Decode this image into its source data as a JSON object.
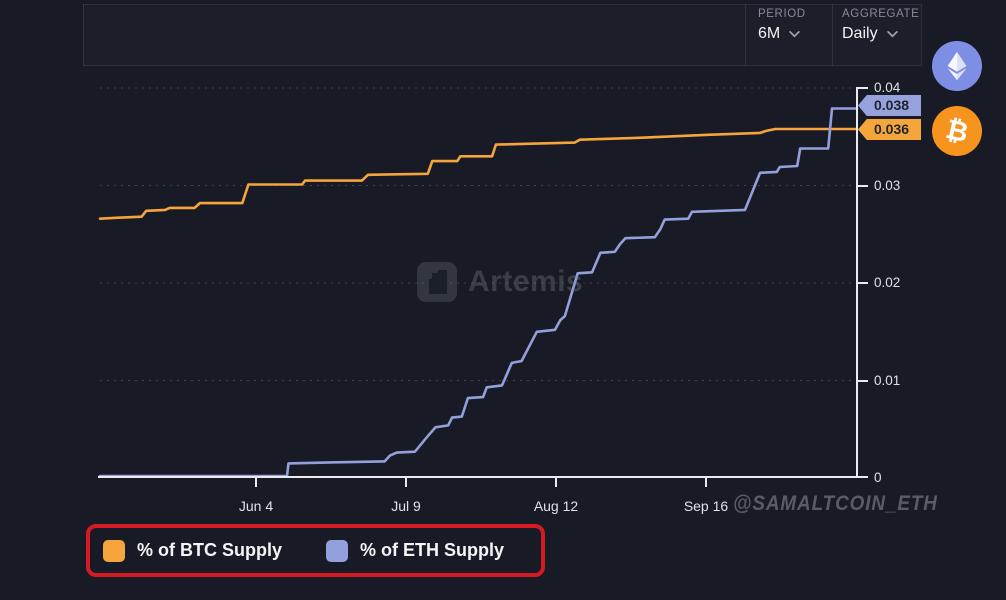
{
  "toolbar": {
    "period_label": "PERIOD",
    "period_value": "6M",
    "aggregate_label": "AGGREGATE",
    "aggregate_value": "Daily"
  },
  "coin_buttons": {
    "eth_bg": "#7D8EE4",
    "btc_bg": "#F7941E",
    "btc_symbol": "₿"
  },
  "tags": {
    "eth_value": "0.038",
    "btc_value": "0.036"
  },
  "watermarks": {
    "brand": "Artemis",
    "handle": "@SAMALTCOIN_ETH"
  },
  "legend": [
    {
      "label": "% of BTC Supply",
      "color": "#F5A53C"
    },
    {
      "label": "% of ETH Supply",
      "color": "#93A0DB"
    }
  ],
  "chart_data": {
    "type": "line",
    "title": "",
    "xlabel": "",
    "ylabel": "",
    "ylim": [
      0,
      0.04
    ],
    "y_ticks": [
      0,
      0.01,
      0.02,
      0.03,
      0.04
    ],
    "y_tick_labels": [
      "0",
      "0.01",
      "0.02",
      "0.03",
      "0.04"
    ],
    "x_tick_labels": [
      "Jun 4",
      "Jul 9",
      "Aug 12",
      "Sep 16"
    ],
    "x_tick_pct": [
      20.6,
      40.4,
      60.2,
      80.1
    ],
    "grid": "horizontal-dashed",
    "grid_color": "#3C414E",
    "legend_position": "bottom",
    "series": [
      {
        "name": "% of BTC Supply",
        "color": "#F5A53C",
        "end_label": "0.036",
        "points_pct_value": [
          [
            0,
            0.0266
          ],
          [
            2.4,
            0.0267
          ],
          [
            5.5,
            0.0268
          ],
          [
            6.1,
            0.0274
          ],
          [
            8.6,
            0.0275
          ],
          [
            9.2,
            0.0277
          ],
          [
            12.5,
            0.0277
          ],
          [
            13.2,
            0.0282
          ],
          [
            18.8,
            0.0282
          ],
          [
            19.6,
            0.0301
          ],
          [
            26.7,
            0.0301
          ],
          [
            27.1,
            0.0305
          ],
          [
            34.6,
            0.0305
          ],
          [
            35.4,
            0.0311
          ],
          [
            43.3,
            0.0312
          ],
          [
            43.9,
            0.0325
          ],
          [
            47.2,
            0.0325
          ],
          [
            47.6,
            0.033
          ],
          [
            51.8,
            0.033
          ],
          [
            52.3,
            0.0342
          ],
          [
            62.7,
            0.0344
          ],
          [
            63.4,
            0.0347
          ],
          [
            71.6,
            0.0349
          ],
          [
            80.3,
            0.0352
          ],
          [
            87.2,
            0.0354
          ],
          [
            88,
            0.0356
          ],
          [
            89.2,
            0.0358
          ],
          [
            100,
            0.0358
          ]
        ]
      },
      {
        "name": "% of ETH Supply",
        "color": "#93A0DB",
        "end_label": "0.038",
        "points_pct_value": [
          [
            0,
            0.0002
          ],
          [
            24.7,
            0.0002
          ],
          [
            24.9,
            0.0015
          ],
          [
            30.4,
            0.0016
          ],
          [
            37.6,
            0.0017
          ],
          [
            38.3,
            0.0023
          ],
          [
            39.2,
            0.0026
          ],
          [
            41.6,
            0.0027
          ],
          [
            43.2,
            0.0042
          ],
          [
            44.3,
            0.0052
          ],
          [
            46,
            0.0054
          ],
          [
            46.5,
            0.0062
          ],
          [
            47.8,
            0.0063
          ],
          [
            48.6,
            0.0082
          ],
          [
            50.6,
            0.0083
          ],
          [
            51.1,
            0.0093
          ],
          [
            53.1,
            0.0095
          ],
          [
            54.4,
            0.0118
          ],
          [
            55.7,
            0.012
          ],
          [
            57.7,
            0.015
          ],
          [
            60.1,
            0.0152
          ],
          [
            60.8,
            0.0162
          ],
          [
            61.4,
            0.0166
          ],
          [
            63.1,
            0.021
          ],
          [
            65,
            0.0211
          ],
          [
            66.1,
            0.0231
          ],
          [
            68,
            0.0232
          ],
          [
            68.7,
            0.024
          ],
          [
            69.4,
            0.0246
          ],
          [
            73.3,
            0.0247
          ],
          [
            74,
            0.0255
          ],
          [
            74.6,
            0.0265
          ],
          [
            77.7,
            0.0266
          ],
          [
            78.2,
            0.0273
          ],
          [
            85.2,
            0.0275
          ],
          [
            87.2,
            0.0313
          ],
          [
            89.4,
            0.0314
          ],
          [
            89.8,
            0.0319
          ],
          [
            92.1,
            0.032
          ],
          [
            92.5,
            0.0338
          ],
          [
            96.2,
            0.0338
          ],
          [
            96.7,
            0.0379
          ],
          [
            100,
            0.0379
          ]
        ]
      }
    ]
  }
}
